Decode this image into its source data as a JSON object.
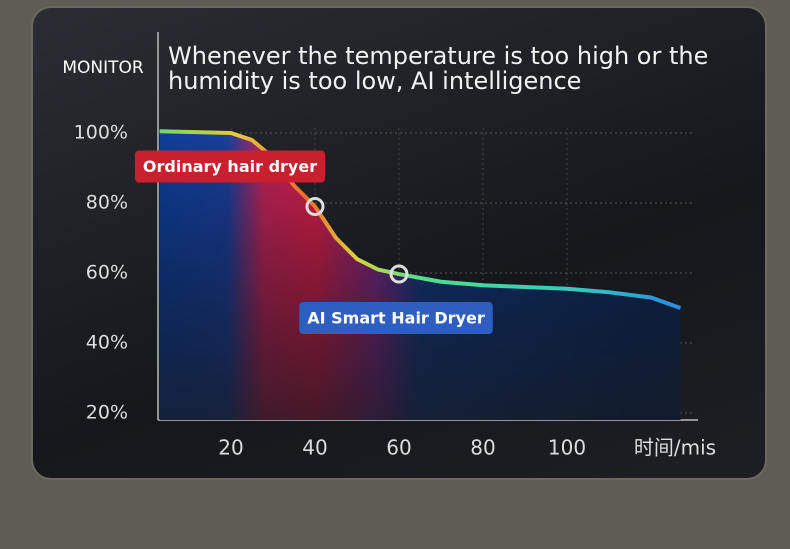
{
  "chart_data": {
    "type": "area",
    "title": "Whenever the temperature is too high or the humidity is too low, AI intelligence",
    "y_label": "MONITOR",
    "x_label": "时间/mis",
    "x": [
      3,
      20,
      25,
      30,
      35,
      40,
      45,
      50,
      55,
      60,
      70,
      80,
      90,
      100,
      110,
      120,
      127
    ],
    "series": [
      {
        "values": [
          100.5,
          100,
          98,
          93,
          85,
          79,
          70,
          64,
          61,
          59.7,
          57.5,
          56.5,
          56,
          55.5,
          54.5,
          53,
          50
        ],
        "color": "#2a7de0"
      }
    ],
    "annotations": [
      {
        "text": "Ordinary hair dryer",
        "x": 40,
        "y": 79,
        "color": "#c9202f"
      },
      {
        "text": "AI Smart Hair Dryer",
        "x": 60,
        "y": 59.7,
        "color": "#2e5fc0"
      }
    ],
    "xlim": [
      0,
      130
    ],
    "ylim": [
      18,
      130
    ],
    "xticks": [
      20,
      40,
      60,
      80,
      100
    ],
    "yticks": [
      {
        "value": 20,
        "label": "20%"
      },
      {
        "value": 40,
        "label": "40%"
      },
      {
        "value": 60,
        "label": "60%"
      },
      {
        "value": 80,
        "label": "80%"
      },
      {
        "value": 100,
        "label": "100%"
      }
    ],
    "grid": true
  }
}
